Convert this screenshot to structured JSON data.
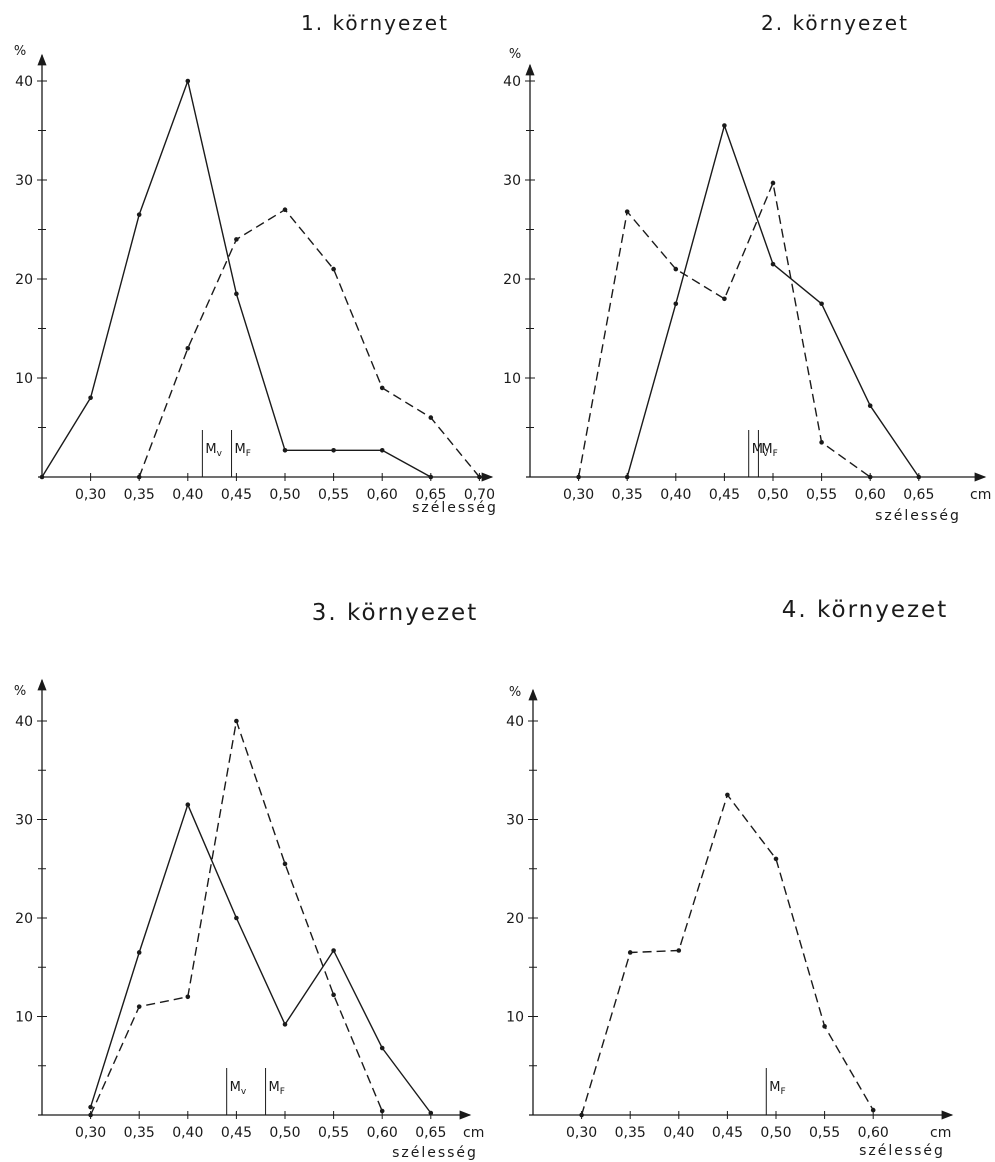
{
  "chart_data": [
    {
      "type": "line",
      "title": "1. környezet",
      "ylabel": "%",
      "xlabel": "szélesség",
      "x_unit": "",
      "ylim": [
        0,
        40
      ],
      "xlim": [
        0.25,
        0.7
      ],
      "yticks": [
        10,
        20,
        30,
        40
      ],
      "ytick_labels": [
        "10",
        "20",
        "30",
        "40"
      ],
      "xticks": [
        0.3,
        0.35,
        0.4,
        0.45,
        0.5,
        0.55,
        0.6,
        0.65,
        0.7
      ],
      "xtick_labels": [
        "0,30",
        "0,35",
        "0,40",
        "0,45",
        "0,50",
        "0,55",
        "0,60",
        "0,65",
        "0,70"
      ],
      "markers": [
        {
          "label": "Mv",
          "x": 0.415
        },
        {
          "label": "MF",
          "x": 0.445
        }
      ],
      "series": [
        {
          "style": "solid",
          "x": [
            0.25,
            0.3,
            0.35,
            0.4,
            0.45,
            0.5,
            0.55,
            0.6,
            0.65
          ],
          "y": [
            0,
            8,
            26.5,
            40,
            18.5,
            2.7,
            2.7,
            2.7,
            0
          ]
        },
        {
          "style": "dashed",
          "x": [
            0.35,
            0.4,
            0.45,
            0.5,
            0.55,
            0.6,
            0.65,
            0.7
          ],
          "y": [
            0,
            13,
            24,
            27,
            21,
            9,
            6,
            0
          ]
        }
      ]
    },
    {
      "type": "line",
      "title": "2. környezet",
      "ylabel": "%",
      "xlabel": "szélesség",
      "x_unit": "cm",
      "ylim": [
        0,
        40
      ],
      "xlim": [
        0.25,
        0.65
      ],
      "yticks": [
        10,
        20,
        30,
        40
      ],
      "ytick_labels": [
        "10",
        "20",
        "30",
        "40"
      ],
      "xticks": [
        0.3,
        0.35,
        0.4,
        0.45,
        0.5,
        0.55,
        0.6,
        0.65
      ],
      "xtick_labels": [
        "0,30",
        "0,35",
        "0,40",
        "0,45",
        "0,50",
        "0,55",
        "0,60",
        "0,65"
      ],
      "markers": [
        {
          "label": "Mv",
          "x": 0.475
        },
        {
          "label": "MF",
          "x": 0.485
        }
      ],
      "series": [
        {
          "style": "solid",
          "x": [
            0.35,
            0.4,
            0.45,
            0.5,
            0.55,
            0.6,
            0.65
          ],
          "y": [
            0,
            17.5,
            35.5,
            21.5,
            17.5,
            7.2,
            0
          ]
        },
        {
          "style": "dashed",
          "x": [
            0.3,
            0.35,
            0.4,
            0.45,
            0.5,
            0.55,
            0.6
          ],
          "y": [
            0,
            26.8,
            21,
            18,
            29.7,
            3.5,
            0
          ]
        }
      ]
    },
    {
      "type": "line",
      "title": "3. környezet",
      "ylabel": "%",
      "xlabel": "szélesség",
      "x_unit": "cm",
      "ylim": [
        0,
        40
      ],
      "xlim": [
        0.25,
        0.65
      ],
      "yticks": [
        10,
        20,
        30,
        40
      ],
      "ytick_labels": [
        "10",
        "20",
        "30",
        "40"
      ],
      "xticks": [
        0.3,
        0.35,
        0.4,
        0.45,
        0.5,
        0.55,
        0.6,
        0.65
      ],
      "xtick_labels": [
        "0,30",
        "0,35",
        "0,40",
        "0,45",
        "0,50",
        "0,55",
        "0,60",
        "0,65"
      ],
      "markers": [
        {
          "label": "Mv",
          "x": 0.44
        },
        {
          "label": "MF",
          "x": 0.48
        }
      ],
      "series": [
        {
          "style": "solid",
          "x": [
            0.3,
            0.35,
            0.4,
            0.45,
            0.5,
            0.55,
            0.6,
            0.65
          ],
          "y": [
            0.8,
            16.5,
            31.5,
            20,
            9.2,
            16.7,
            6.8,
            0.2
          ]
        },
        {
          "style": "dashed",
          "x": [
            0.3,
            0.35,
            0.4,
            0.45,
            0.5,
            0.55,
            0.6
          ],
          "y": [
            0,
            11,
            12,
            40,
            25.5,
            12.2,
            0.4
          ]
        }
      ]
    },
    {
      "type": "line",
      "title": "4. környezet",
      "ylabel": "%",
      "xlabel": "szélesség",
      "x_unit": "cm",
      "ylim": [
        0,
        40
      ],
      "xlim": [
        0.25,
        0.6
      ],
      "yticks": [
        10,
        20,
        30,
        40
      ],
      "ytick_labels": [
        "10",
        "20",
        "30",
        "40"
      ],
      "xticks": [
        0.3,
        0.35,
        0.4,
        0.45,
        0.5,
        0.55,
        0.6
      ],
      "xtick_labels": [
        "0,30",
        "0,35",
        "0,40",
        "0,45",
        "0,50",
        "0,55",
        "0,60"
      ],
      "markers": [
        {
          "label": "MF",
          "x": 0.49
        }
      ],
      "series": [
        {
          "style": "dashed",
          "x": [
            0.3,
            0.35,
            0.4,
            0.45,
            0.5,
            0.55,
            0.6
          ],
          "y": [
            0,
            16.5,
            16.7,
            32.5,
            26,
            9,
            0.5
          ]
        }
      ]
    }
  ]
}
